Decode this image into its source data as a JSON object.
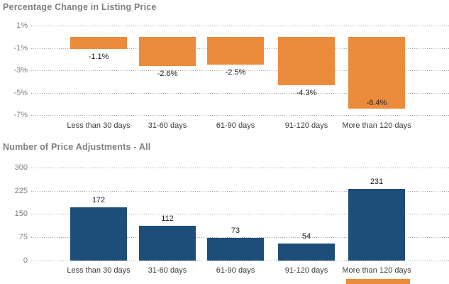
{
  "page": {
    "background": "#ffffff"
  },
  "chart_data": [
    {
      "type": "bar",
      "title": "Percentage Change in Listing Price",
      "categories": [
        "Less than 30 days",
        "31-60 days",
        "61-90 days",
        "91-120 days",
        "More than 120 days"
      ],
      "values": [
        -1.1,
        -2.6,
        -2.5,
        -4.3,
        -6.4
      ],
      "value_labels": [
        "-1.1%",
        "-2.6%",
        "-2.5%",
        "-4.3%",
        "-6.4%"
      ],
      "y_ticks": [
        {
          "value": 1,
          "label": "1%"
        },
        {
          "value": -1,
          "label": "-1%"
        },
        {
          "value": -3,
          "label": "-3%"
        },
        {
          "value": -5,
          "label": "-5%"
        },
        {
          "value": -7,
          "label": "-7%"
        }
      ],
      "ylim": [
        -7,
        1
      ],
      "xlabel": "",
      "ylabel": "",
      "grid": "dotted-horizontal",
      "legend": "none",
      "bar_color": "#ED8B3D",
      "title_color": "#7f7f7f"
    },
    {
      "type": "bar",
      "title": "Number of Price Adjustments - All",
      "categories": [
        "Less than 30 days",
        "31-60 days",
        "61-90 days",
        "91-120 days",
        "More than 120 days"
      ],
      "values": [
        172,
        112,
        73,
        54,
        231
      ],
      "value_labels": [
        "172",
        "112",
        "73",
        "54",
        "231"
      ],
      "y_ticks": [
        {
          "value": 300,
          "label": "300"
        },
        {
          "value": 225,
          "label": "225"
        },
        {
          "value": 150,
          "label": "150"
        },
        {
          "value": 75,
          "label": "75"
        },
        {
          "value": 0,
          "label": "0"
        }
      ],
      "ylim": [
        0,
        300
      ],
      "xlabel": "",
      "ylabel": "",
      "grid": "dotted-horizontal",
      "legend": "none",
      "bar_color": "#1C4E79",
      "title_color": "#7f7f7f"
    }
  ],
  "cutoff_bar": {
    "color": "#ED8B3D"
  }
}
